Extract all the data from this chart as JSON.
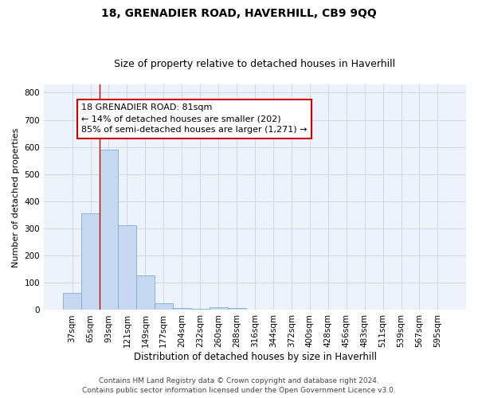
{
  "title": "18, GRENADIER ROAD, HAVERHILL, CB9 9QQ",
  "subtitle": "Size of property relative to detached houses in Haverhill",
  "xlabel": "Distribution of detached houses by size in Haverhill",
  "ylabel": "Number of detached properties",
  "bar_color": "#c5d8f0",
  "bar_edge_color": "#7aafd4",
  "grid_color": "#c8d4e8",
  "background_color": "#eef2fa",
  "categories": [
    "37sqm",
    "65sqm",
    "93sqm",
    "121sqm",
    "149sqm",
    "177sqm",
    "204sqm",
    "232sqm",
    "260sqm",
    "288sqm",
    "316sqm",
    "344sqm",
    "372sqm",
    "400sqm",
    "428sqm",
    "456sqm",
    "483sqm",
    "511sqm",
    "539sqm",
    "567sqm",
    "595sqm"
  ],
  "values": [
    62,
    356,
    591,
    312,
    128,
    25,
    8,
    5,
    10,
    8,
    0,
    0,
    0,
    0,
    0,
    0,
    0,
    0,
    0,
    0,
    0
  ],
  "ylim": [
    0,
    830
  ],
  "yticks": [
    0,
    100,
    200,
    300,
    400,
    500,
    600,
    700,
    800
  ],
  "annotation_text": "18 GRENADIER ROAD: 81sqm\n← 14% of detached houses are smaller (202)\n85% of semi-detached houses are larger (1,271) →",
  "vline_x": 1.5,
  "vline_color": "#cc0000",
  "footer_line1": "Contains HM Land Registry data © Crown copyright and database right 2024.",
  "footer_line2": "Contains public sector information licensed under the Open Government Licence v3.0.",
  "title_fontsize": 10,
  "subtitle_fontsize": 9,
  "xlabel_fontsize": 8.5,
  "ylabel_fontsize": 8,
  "tick_fontsize": 7.5,
  "footer_fontsize": 6.5,
  "annotation_fontsize": 8
}
